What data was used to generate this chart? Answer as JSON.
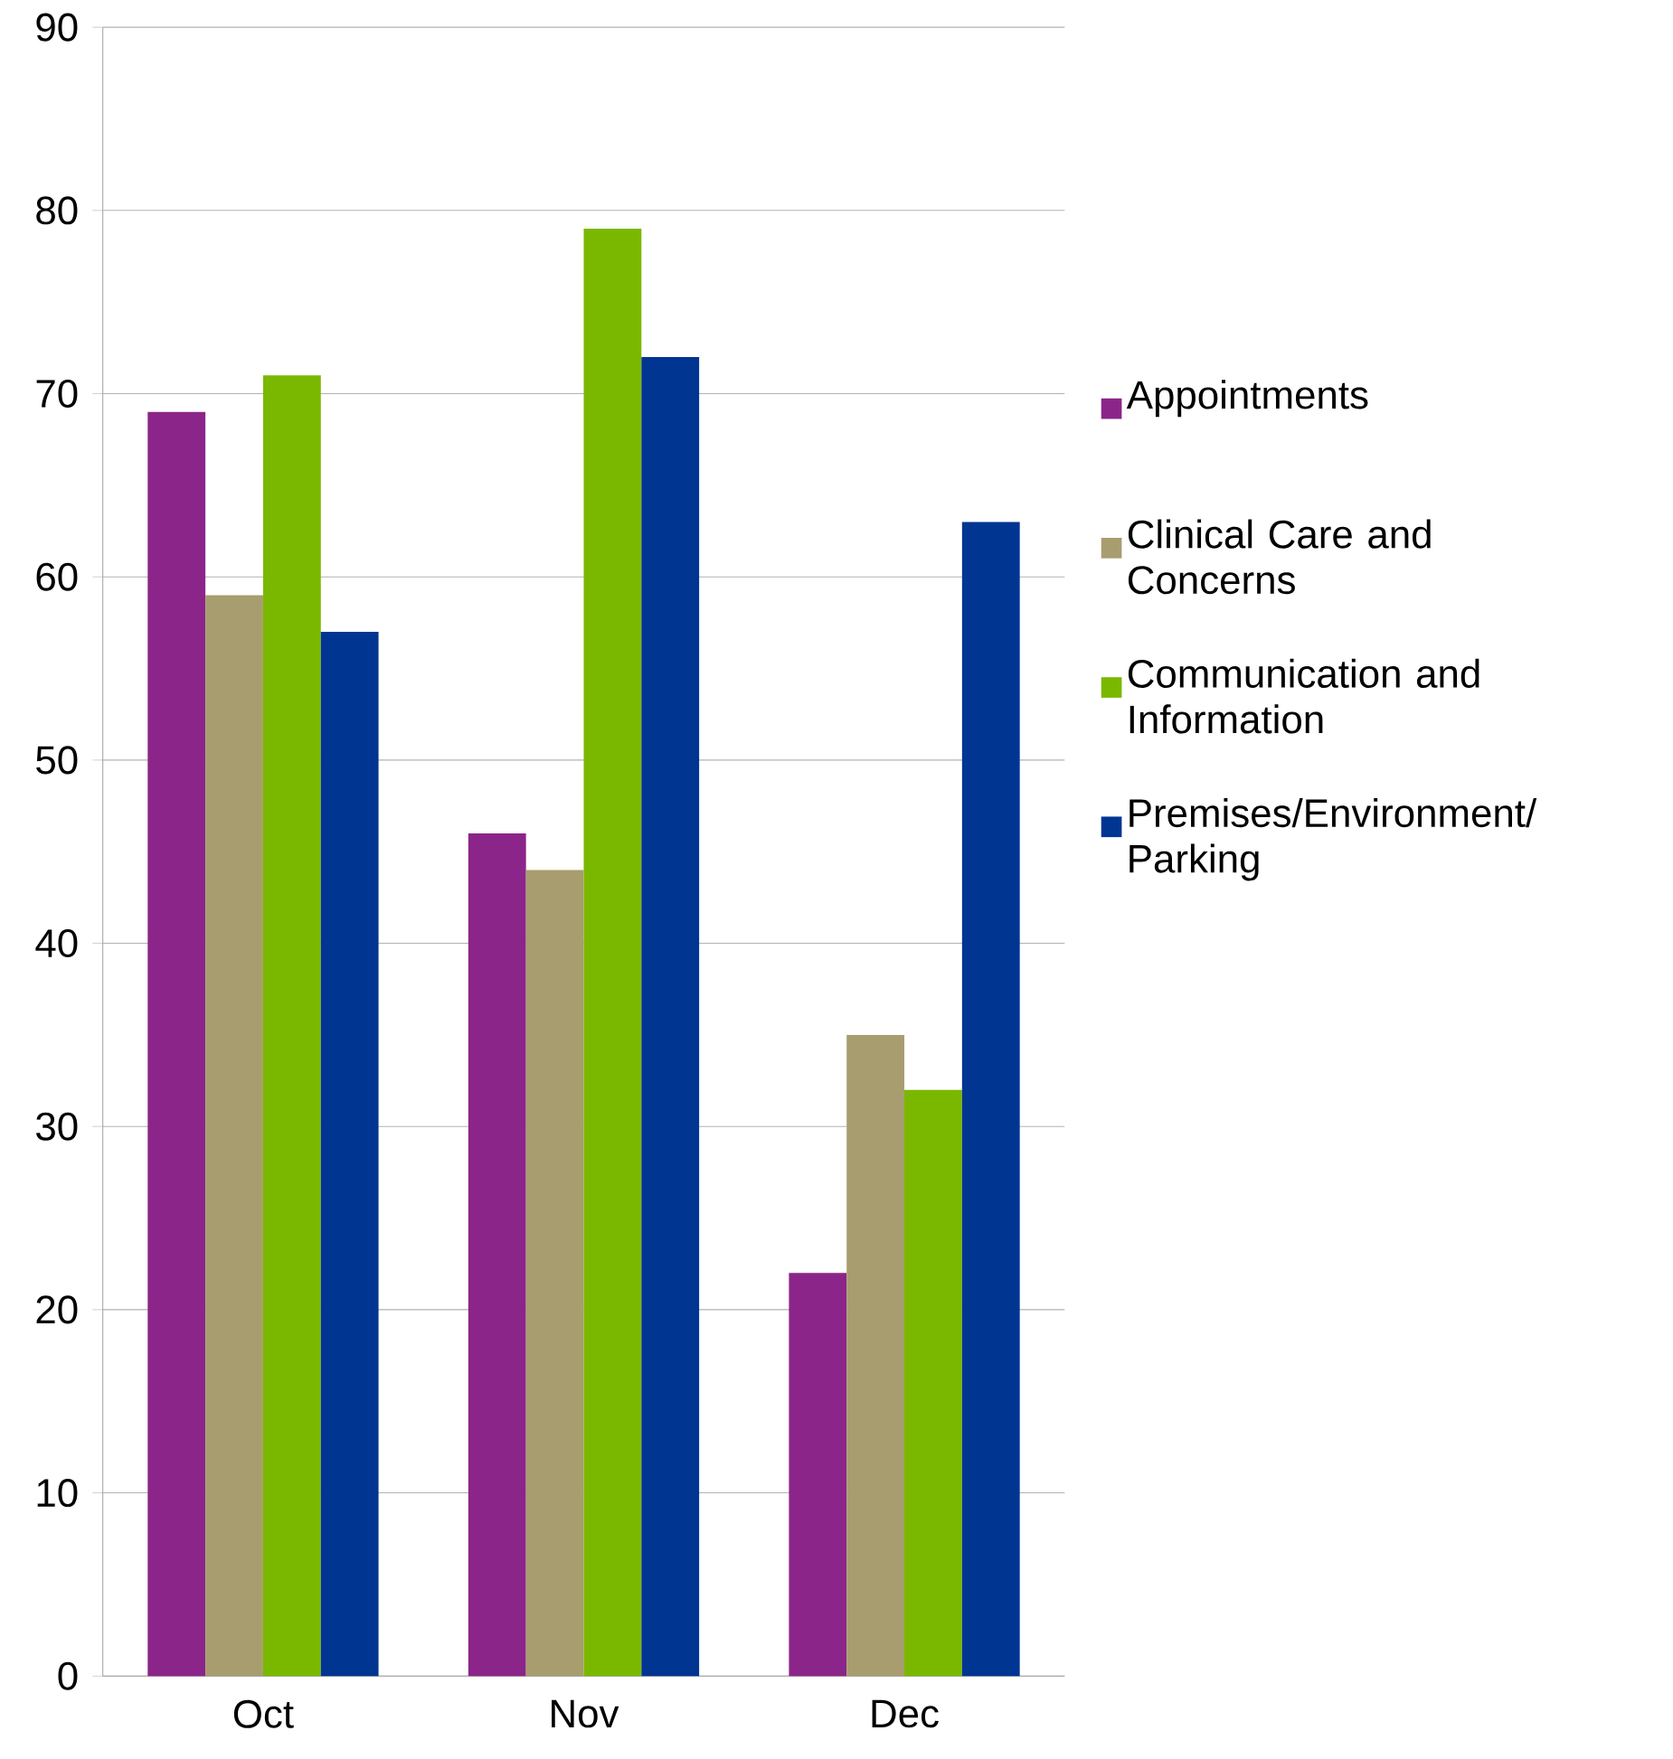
{
  "chart_data": {
    "type": "bar",
    "categories": [
      "Oct",
      "Nov",
      "Dec"
    ],
    "series": [
      {
        "name": "Appointments",
        "color": "#8b2589",
        "values": [
          69,
          46,
          22
        ]
      },
      {
        "name": "Clinical Care and Concerns",
        "color": "#a89d6f",
        "values": [
          59,
          44,
          35
        ]
      },
      {
        "name": "Communication and Information",
        "color": "#7ab800",
        "values": [
          71,
          79,
          32
        ]
      },
      {
        "name": "Premises/Environment/ Parking",
        "color": "#003591",
        "values": [
          57,
          72,
          63
        ]
      }
    ],
    "ylim": [
      0,
      90
    ],
    "yticks": [
      0,
      10,
      20,
      30,
      40,
      50,
      60,
      70,
      80,
      90
    ],
    "grid": "y",
    "legend": "right"
  }
}
